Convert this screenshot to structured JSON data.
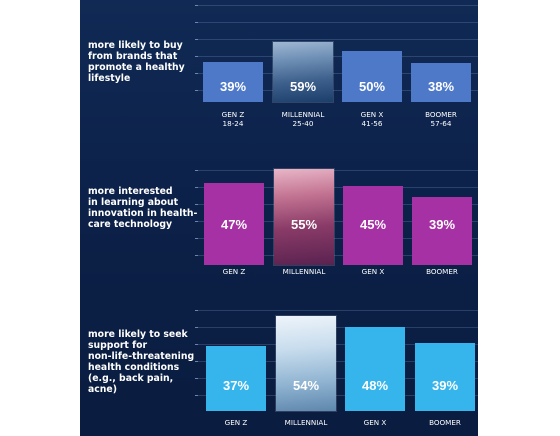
{
  "chart_data": [
    {
      "type": "bar",
      "title": "more likely to buy\nfrom brands that\npromote a healthy\nlifestyle",
      "categories": [
        "GEN Z\n18-24",
        "MILLENNIAL\n25-40",
        "GEN X\n41-56",
        "BOOMER\n57-64"
      ],
      "values": [
        39,
        59,
        50,
        38
      ],
      "value_labels": [
        "39%",
        "59%",
        "50%",
        "38%"
      ],
      "ylim": [
        0,
        70
      ],
      "color": "#4e79c9",
      "highlight_index": 1
    },
    {
      "type": "bar",
      "title": "more interested\nin learning about\ninnovation in health-\ncare technology",
      "categories": [
        "GEN Z",
        "MILLENNIAL",
        "GEN X",
        "BOOMER"
      ],
      "values": [
        47,
        55,
        45,
        39
      ],
      "value_labels": [
        "47%",
        "55%",
        "45%",
        "39%"
      ],
      "ylim": [
        0,
        70
      ],
      "color": "#a531a4",
      "highlight_index": 1
    },
    {
      "type": "bar",
      "title": "more likely to seek\nsupport for\nnon-life-threatening\nhealth conditions\n(e.g., back pain, acne)",
      "categories": [
        "GEN Z",
        "MILLENNIAL",
        "GEN X",
        "BOOMER"
      ],
      "values": [
        37,
        54,
        48,
        39
      ],
      "value_labels": [
        "37%",
        "54%",
        "48%",
        "39%"
      ],
      "ylim": [
        0,
        70
      ],
      "color": "#35b5ec",
      "highlight_index": 1
    }
  ]
}
